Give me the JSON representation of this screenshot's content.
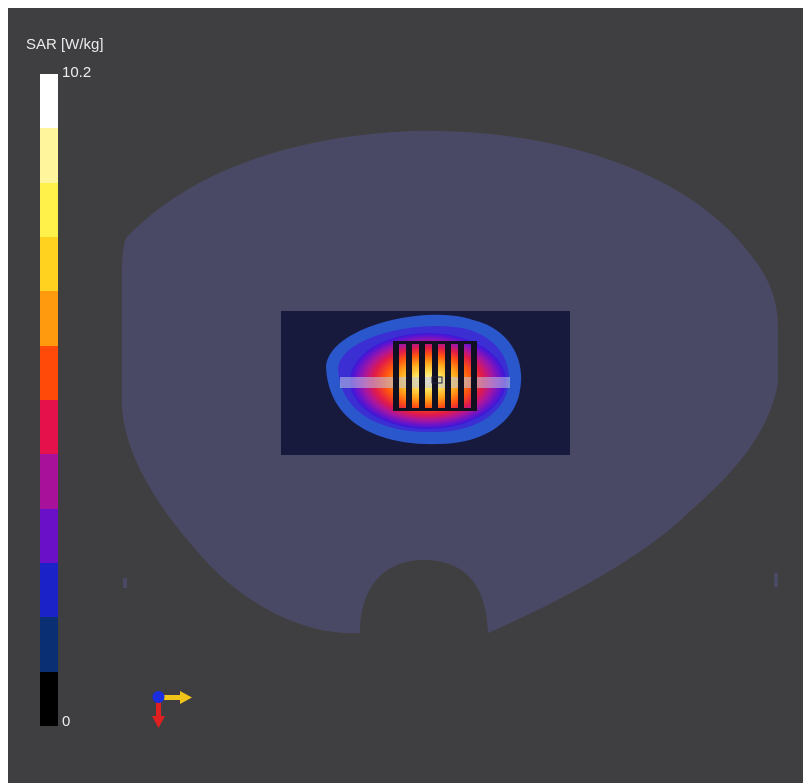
{
  "legend": {
    "title": "SAR [W/kg]",
    "max_label": "10.2",
    "min_label": "0",
    "colors": [
      "#ffffff",
      "#fff59d",
      "#fff04a",
      "#ffd21f",
      "#ff9a0e",
      "#ff4a0a",
      "#e4114a",
      "#a8119a",
      "#6a10c8",
      "#1a22c8",
      "#0a2f72",
      "#000000"
    ]
  },
  "scene": {
    "background_color": "#3f3f41",
    "phantom_color": "#4a4965",
    "box_color": "#171a3c"
  },
  "axis_widget": {
    "x_color": "#f0c419",
    "y_color": "#e02020",
    "z_color": "#1a2ee0"
  }
}
